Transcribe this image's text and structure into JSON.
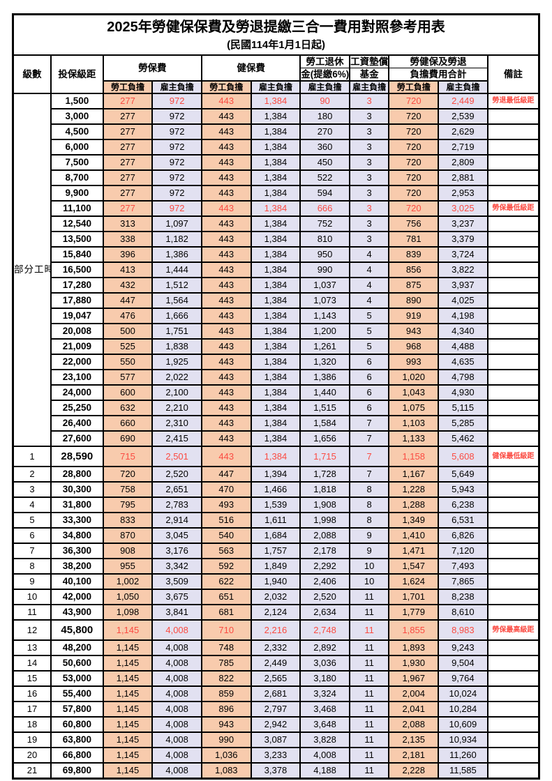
{
  "title": "2025年勞健保保費及勞退提繳三合一費用對照參考用表",
  "subtitle": "(民國114年1月1日起)",
  "columns": {
    "level": "級數",
    "bracket": "投保級距",
    "labor_fee": "勞保費",
    "health_fee": "健保費",
    "pension_line1": "勞工退休",
    "pension_line2": "金(提繳6%)",
    "wagefund_line1": "工資墊償",
    "wagefund_line2": "基金",
    "total_line1": "勞健保及勞退",
    "total_line2": "負擔費用合計",
    "remark": "備註",
    "employee_share": "勞工負擔",
    "employer_share": "雇主負擔"
  },
  "group_label": "部分工時",
  "colors": {
    "employee_bg": "#F8CBAD",
    "employer_bg": "#E2E1F1",
    "highlight_text": "#FB4B42",
    "border": "#000000"
  },
  "rows": [
    {
      "level": null,
      "bracket": "1,500",
      "fees": [
        "277",
        "972",
        "443",
        "1,384",
        "90",
        "3",
        "720",
        "2,449"
      ],
      "remark": "勞退最低級距",
      "highlight": true,
      "tall": false
    },
    {
      "level": null,
      "bracket": "3,000",
      "fees": [
        "277",
        "972",
        "443",
        "1,384",
        "180",
        "3",
        "720",
        "2,539"
      ],
      "remark": "",
      "highlight": false,
      "tall": false
    },
    {
      "level": null,
      "bracket": "4,500",
      "fees": [
        "277",
        "972",
        "443",
        "1,384",
        "270",
        "3",
        "720",
        "2,629"
      ],
      "remark": "",
      "highlight": false,
      "tall": false
    },
    {
      "level": null,
      "bracket": "6,000",
      "fees": [
        "277",
        "972",
        "443",
        "1,384",
        "360",
        "3",
        "720",
        "2,719"
      ],
      "remark": "",
      "highlight": false,
      "tall": false
    },
    {
      "level": null,
      "bracket": "7,500",
      "fees": [
        "277",
        "972",
        "443",
        "1,384",
        "450",
        "3",
        "720",
        "2,809"
      ],
      "remark": "",
      "highlight": false,
      "tall": false
    },
    {
      "level": null,
      "bracket": "8,700",
      "fees": [
        "277",
        "972",
        "443",
        "1,384",
        "522",
        "3",
        "720",
        "2,881"
      ],
      "remark": "",
      "highlight": false,
      "tall": false
    },
    {
      "level": null,
      "bracket": "9,900",
      "fees": [
        "277",
        "972",
        "443",
        "1,384",
        "594",
        "3",
        "720",
        "2,953"
      ],
      "remark": "",
      "highlight": false,
      "tall": false
    },
    {
      "level": null,
      "bracket": "11,100",
      "fees": [
        "277",
        "972",
        "443",
        "1,384",
        "666",
        "3",
        "720",
        "3,025"
      ],
      "remark": "勞保最低級距",
      "highlight": true,
      "tall": false
    },
    {
      "level": null,
      "bracket": "12,540",
      "fees": [
        "313",
        "1,097",
        "443",
        "1,384",
        "752",
        "3",
        "756",
        "3,237"
      ],
      "remark": "",
      "highlight": false,
      "tall": false
    },
    {
      "level": null,
      "bracket": "13,500",
      "fees": [
        "338",
        "1,182",
        "443",
        "1,384",
        "810",
        "3",
        "781",
        "3,379"
      ],
      "remark": "",
      "highlight": false,
      "tall": false
    },
    {
      "level": null,
      "bracket": "15,840",
      "fees": [
        "396",
        "1,386",
        "443",
        "1,384",
        "950",
        "4",
        "839",
        "3,724"
      ],
      "remark": "",
      "highlight": false,
      "tall": false
    },
    {
      "level": null,
      "bracket": "16,500",
      "fees": [
        "413",
        "1,444",
        "443",
        "1,384",
        "990",
        "4",
        "856",
        "3,822"
      ],
      "remark": "",
      "highlight": false,
      "tall": false
    },
    {
      "level": null,
      "bracket": "17,280",
      "fees": [
        "432",
        "1,512",
        "443",
        "1,384",
        "1,037",
        "4",
        "875",
        "3,937"
      ],
      "remark": "",
      "highlight": false,
      "tall": false
    },
    {
      "level": null,
      "bracket": "17,880",
      "fees": [
        "447",
        "1,564",
        "443",
        "1,384",
        "1,073",
        "4",
        "890",
        "4,025"
      ],
      "remark": "",
      "highlight": false,
      "tall": false
    },
    {
      "level": null,
      "bracket": "19,047",
      "fees": [
        "476",
        "1,666",
        "443",
        "1,384",
        "1,143",
        "5",
        "919",
        "4,198"
      ],
      "remark": "",
      "highlight": false,
      "tall": false
    },
    {
      "level": null,
      "bracket": "20,008",
      "fees": [
        "500",
        "1,751",
        "443",
        "1,384",
        "1,200",
        "5",
        "943",
        "4,340"
      ],
      "remark": "",
      "highlight": false,
      "tall": false
    },
    {
      "level": null,
      "bracket": "21,009",
      "fees": [
        "525",
        "1,838",
        "443",
        "1,384",
        "1,261",
        "5",
        "968",
        "4,488"
      ],
      "remark": "",
      "highlight": false,
      "tall": false
    },
    {
      "level": null,
      "bracket": "22,000",
      "fees": [
        "550",
        "1,925",
        "443",
        "1,384",
        "1,320",
        "6",
        "993",
        "4,635"
      ],
      "remark": "",
      "highlight": false,
      "tall": false
    },
    {
      "level": null,
      "bracket": "23,100",
      "fees": [
        "577",
        "2,022",
        "443",
        "1,384",
        "1,386",
        "6",
        "1,020",
        "4,798"
      ],
      "remark": "",
      "highlight": false,
      "tall": false
    },
    {
      "level": null,
      "bracket": "24,000",
      "fees": [
        "600",
        "2,100",
        "443",
        "1,384",
        "1,440",
        "6",
        "1,043",
        "4,930"
      ],
      "remark": "",
      "highlight": false,
      "tall": false
    },
    {
      "level": null,
      "bracket": "25,250",
      "fees": [
        "632",
        "2,210",
        "443",
        "1,384",
        "1,515",
        "6",
        "1,075",
        "5,115"
      ],
      "remark": "",
      "highlight": false,
      "tall": false
    },
    {
      "level": null,
      "bracket": "26,400",
      "fees": [
        "660",
        "2,310",
        "443",
        "1,384",
        "1,584",
        "7",
        "1,103",
        "5,285"
      ],
      "remark": "",
      "highlight": false,
      "tall": false
    },
    {
      "level": null,
      "bracket": "27,600",
      "fees": [
        "690",
        "2,415",
        "443",
        "1,384",
        "1,656",
        "7",
        "1,133",
        "5,462"
      ],
      "remark": "",
      "highlight": false,
      "tall": false
    },
    {
      "level": "1",
      "bracket": "28,590",
      "fees": [
        "715",
        "2,501",
        "443",
        "1,384",
        "1,715",
        "7",
        "1,158",
        "5,608"
      ],
      "remark": "健保最低級距",
      "highlight": true,
      "tall": true
    },
    {
      "level": "2",
      "bracket": "28,800",
      "fees": [
        "720",
        "2,520",
        "447",
        "1,394",
        "1,728",
        "7",
        "1,167",
        "5,649"
      ],
      "remark": "",
      "highlight": false,
      "tall": false
    },
    {
      "level": "3",
      "bracket": "30,300",
      "fees": [
        "758",
        "2,651",
        "470",
        "1,466",
        "1,818",
        "8",
        "1,228",
        "5,943"
      ],
      "remark": "",
      "highlight": false,
      "tall": false
    },
    {
      "level": "4",
      "bracket": "31,800",
      "fees": [
        "795",
        "2,783",
        "493",
        "1,539",
        "1,908",
        "8",
        "1,288",
        "6,238"
      ],
      "remark": "",
      "highlight": false,
      "tall": false
    },
    {
      "level": "5",
      "bracket": "33,300",
      "fees": [
        "833",
        "2,914",
        "516",
        "1,611",
        "1,998",
        "8",
        "1,349",
        "6,531"
      ],
      "remark": "",
      "highlight": false,
      "tall": false
    },
    {
      "level": "6",
      "bracket": "34,800",
      "fees": [
        "870",
        "3,045",
        "540",
        "1,684",
        "2,088",
        "9",
        "1,410",
        "6,826"
      ],
      "remark": "",
      "highlight": false,
      "tall": false
    },
    {
      "level": "7",
      "bracket": "36,300",
      "fees": [
        "908",
        "3,176",
        "563",
        "1,757",
        "2,178",
        "9",
        "1,471",
        "7,120"
      ],
      "remark": "",
      "highlight": false,
      "tall": false
    },
    {
      "level": "8",
      "bracket": "38,200",
      "fees": [
        "955",
        "3,342",
        "592",
        "1,849",
        "2,292",
        "10",
        "1,547",
        "7,493"
      ],
      "remark": "",
      "highlight": false,
      "tall": false
    },
    {
      "level": "9",
      "bracket": "40,100",
      "fees": [
        "1,002",
        "3,509",
        "622",
        "1,940",
        "2,406",
        "10",
        "1,624",
        "7,865"
      ],
      "remark": "",
      "highlight": false,
      "tall": false
    },
    {
      "level": "10",
      "bracket": "42,000",
      "fees": [
        "1,050",
        "3,675",
        "651",
        "2,032",
        "2,520",
        "11",
        "1,701",
        "8,238"
      ],
      "remark": "",
      "highlight": false,
      "tall": false
    },
    {
      "level": "11",
      "bracket": "43,900",
      "fees": [
        "1,098",
        "3,841",
        "681",
        "2,124",
        "2,634",
        "11",
        "1,779",
        "8,610"
      ],
      "remark": "",
      "highlight": false,
      "tall": false
    },
    {
      "level": "12",
      "bracket": "45,800",
      "fees": [
        "1,145",
        "4,008",
        "710",
        "2,216",
        "2,748",
        "11",
        "1,855",
        "8,983"
      ],
      "remark": "勞保最高級距",
      "highlight": true,
      "tall": true
    },
    {
      "level": "13",
      "bracket": "48,200",
      "fees": [
        "1,145",
        "4,008",
        "748",
        "2,332",
        "2,892",
        "11",
        "1,893",
        "9,243"
      ],
      "remark": "",
      "highlight": false,
      "tall": false
    },
    {
      "level": "14",
      "bracket": "50,600",
      "fees": [
        "1,145",
        "4,008",
        "785",
        "2,449",
        "3,036",
        "11",
        "1,930",
        "9,504"
      ],
      "remark": "",
      "highlight": false,
      "tall": false
    },
    {
      "level": "15",
      "bracket": "53,000",
      "fees": [
        "1,145",
        "4,008",
        "822",
        "2,565",
        "3,180",
        "11",
        "1,967",
        "9,764"
      ],
      "remark": "",
      "highlight": false,
      "tall": false
    },
    {
      "level": "16",
      "bracket": "55,400",
      "fees": [
        "1,145",
        "4,008",
        "859",
        "2,681",
        "3,324",
        "11",
        "2,004",
        "10,024"
      ],
      "remark": "",
      "highlight": false,
      "tall": false
    },
    {
      "level": "17",
      "bracket": "57,800",
      "fees": [
        "1,145",
        "4,008",
        "896",
        "2,797",
        "3,468",
        "11",
        "2,041",
        "10,284"
      ],
      "remark": "",
      "highlight": false,
      "tall": false
    },
    {
      "level": "18",
      "bracket": "60,800",
      "fees": [
        "1,145",
        "4,008",
        "943",
        "2,942",
        "3,648",
        "11",
        "2,088",
        "10,609"
      ],
      "remark": "",
      "highlight": false,
      "tall": false
    },
    {
      "level": "19",
      "bracket": "63,800",
      "fees": [
        "1,145",
        "4,008",
        "990",
        "3,087",
        "3,828",
        "11",
        "2,135",
        "10,934"
      ],
      "remark": "",
      "highlight": false,
      "tall": false
    },
    {
      "level": "20",
      "bracket": "66,800",
      "fees": [
        "1,145",
        "4,008",
        "1,036",
        "3,233",
        "4,008",
        "11",
        "2,181",
        "11,260"
      ],
      "remark": "",
      "highlight": false,
      "tall": false
    },
    {
      "level": "21",
      "bracket": "69,800",
      "fees": [
        "1,145",
        "4,008",
        "1,083",
        "3,378",
        "4,188",
        "11",
        "2,228",
        "11,585"
      ],
      "remark": "",
      "highlight": false,
      "tall": false
    }
  ]
}
